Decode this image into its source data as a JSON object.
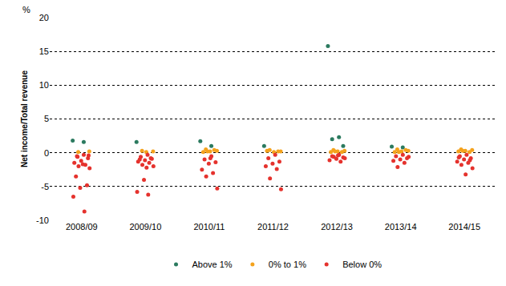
{
  "chart_data": {
    "type": "strip",
    "ylabel": "Net income/Total revenue",
    "annotations": [
      {
        "text": "%"
      }
    ],
    "categories": [
      "2008/09",
      "2009/10",
      "2010/11",
      "2011/12",
      "2012/13",
      "2013/14",
      "2014/15"
    ],
    "series": [
      {
        "name": "Above 1%",
        "color": "#2b7a5f",
        "values": [
          [
            1.8,
            1.6
          ],
          [
            1.6
          ],
          [
            1.7,
            1.0
          ],
          [
            1.0
          ],
          [
            15.8,
            2.3,
            2.0,
            1.0
          ],
          [
            0.9,
            0.8
          ],
          []
        ]
      },
      {
        "name": "0% to 1%",
        "color": "#f4a21c",
        "values": [
          [
            0.1,
            0.2
          ],
          [
            0.3,
            0.2,
            0.1
          ],
          [
            0.5,
            0.3,
            0.2,
            0.1,
            0.4,
            0.2
          ],
          [
            0.4,
            0.2,
            0.1,
            0.3,
            0.2
          ],
          [
            0.4,
            0.3,
            0.2,
            0.1,
            0.1,
            0.2
          ],
          [
            0.5,
            0.3,
            0.2,
            0.1,
            0.4,
            0.1
          ],
          [
            0.5,
            0.4,
            0.3,
            0.2,
            0.1,
            0.3
          ]
        ]
      },
      {
        "name": "Below 0%",
        "color": "#e5322d",
        "values": [
          [
            -0.3,
            -0.5,
            -0.8,
            -1.2,
            -1.5,
            -1.8,
            -2.0,
            -2.3,
            -1.7,
            -3.5,
            -4.8,
            -5.2,
            -6.5,
            -8.7,
            -0.6,
            -0.4
          ],
          [
            -0.3,
            -0.6,
            -0.9,
            -1.1,
            -1.3,
            -1.5,
            -1.8,
            -2.0,
            -2.2,
            -1.0,
            -0.8,
            -4.0,
            -5.8,
            -6.2
          ],
          [
            -0.5,
            -1.0,
            -1.4,
            -1.6,
            -2.5,
            -3.0,
            -3.5,
            -5.3,
            -0.8
          ],
          [
            -0.3,
            -0.8,
            -1.3,
            -1.6,
            -2.0,
            -2.4,
            -3.8,
            -5.4
          ],
          [
            -0.3,
            -0.5,
            -0.7,
            -0.9,
            -1.1,
            -1.3,
            -0.6,
            -0.8,
            -0.4
          ],
          [
            -0.3,
            -0.5,
            -0.8,
            -1.0,
            -1.2,
            -1.5,
            -2.1,
            -0.6
          ],
          [
            -0.3,
            -0.5,
            -0.8,
            -1.0,
            -1.3,
            -1.5,
            -1.8,
            -2.3,
            -3.2,
            -0.7,
            -1.1
          ]
        ]
      }
    ],
    "ylim": [
      -10,
      20
    ],
    "yticks": [
      -10,
      -5,
      0,
      5,
      10,
      15,
      20
    ],
    "grid": true,
    "legend": "bottom",
    "marker": "circle"
  }
}
